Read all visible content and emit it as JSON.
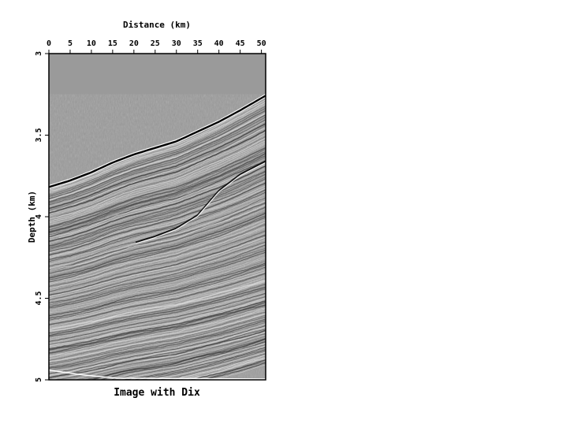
{
  "chart_data": {
    "type": "heatmap",
    "title": "Image with Dix",
    "xlabel": "Distance (km)",
    "ylabel": "Depth (km)",
    "xlim": [
      0,
      51
    ],
    "ylim": [
      3,
      5
    ],
    "x_ticks": [
      "0",
      "5",
      "10",
      "15",
      "20",
      "25",
      "30",
      "35",
      "40",
      "45",
      "50"
    ],
    "x_tick_values": [
      0,
      5,
      10,
      15,
      20,
      25,
      30,
      35,
      40,
      45,
      50
    ],
    "y_ticks": [
      "3",
      "3.5",
      "4",
      "4.5",
      "5"
    ],
    "y_tick_values": [
      3,
      3.5,
      4,
      4.5,
      5
    ],
    "background_color": "#9a9a9a",
    "colormap": "grayscale",
    "water_bottom": {
      "x": [
        0,
        5,
        10,
        15,
        20,
        25,
        30,
        35,
        40,
        45,
        51
      ],
      "depth": [
        3.81,
        3.77,
        3.72,
        3.66,
        3.61,
        3.57,
        3.53,
        3.47,
        3.41,
        3.34,
        3.25
      ]
    },
    "deep_reflector": {
      "x": [
        20,
        25,
        30,
        35,
        40,
        45,
        51
      ],
      "depth": [
        4.16,
        4.12,
        4.07,
        3.99,
        3.84,
        3.74,
        3.66
      ]
    }
  }
}
